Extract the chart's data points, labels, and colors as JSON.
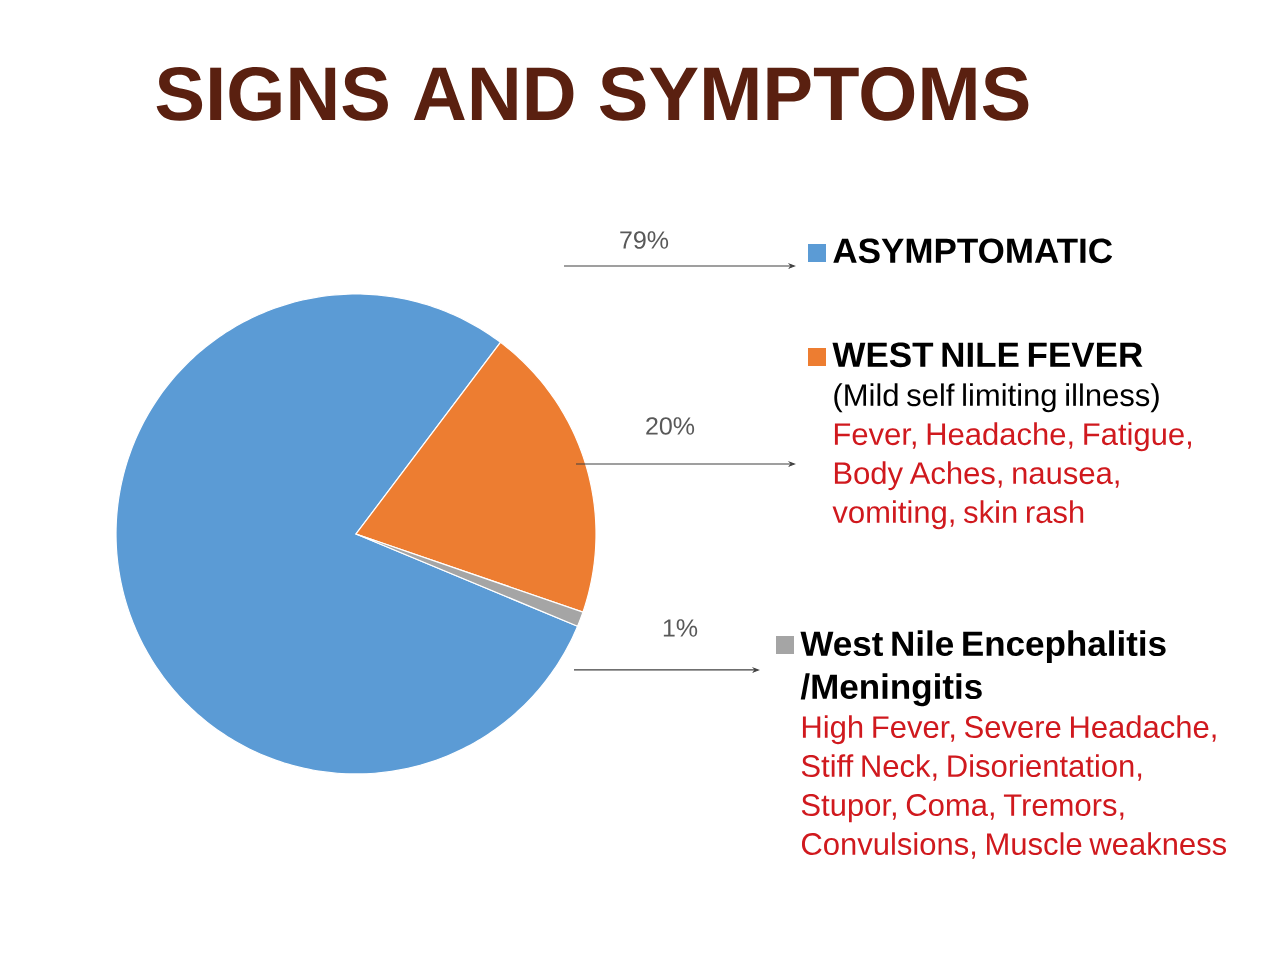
{
  "chart_data": {
    "type": "pie",
    "title": "SIGNS AND SYMPTOMS",
    "categories": [
      "ASYMPTOMATIC",
      "WEST NILE FEVER",
      "West Nile Encephalitis /Meningitis"
    ],
    "values": [
      79,
      20,
      1
    ],
    "colors": [
      "#5b9bd5",
      "#ed7d31",
      "#a5a5a5"
    ],
    "value_labels": [
      "79%",
      "20%",
      "1%"
    ],
    "legend": "right",
    "annotations": [
      "(Mild self limiting illness)",
      "Fever, Headache, Fatigue, Body Aches, nausea, vomiting, skin rash",
      "High Fever, Severe Headache, Stiff Neck, Disorientation, Stupor, Coma, Tremors, Convulsions, Muscle weakness"
    ]
  }
}
